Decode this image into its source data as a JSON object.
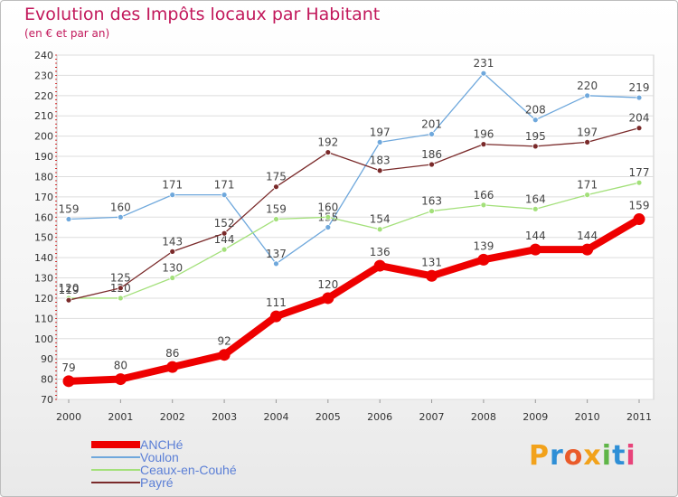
{
  "title": "Evolution des Impôts locaux par Habitant",
  "subtitle": "(en € et par an)",
  "logo": {
    "letters": [
      "P",
      "r",
      "o",
      "x",
      "i",
      "t",
      "i"
    ],
    "colors": [
      "#f2a21b",
      "#2f8fd6",
      "#ea5b2a",
      "#f2a21b",
      "#5fb548",
      "#2f8fd6",
      "#e8437a"
    ]
  },
  "chart_data": {
    "type": "line",
    "title": "Evolution des Impôts locaux par Habitant",
    "subtitle": "(en € et par an)",
    "categories": [
      "2000",
      "2001",
      "2002",
      "2003",
      "2004",
      "2005",
      "2006",
      "2007",
      "2008",
      "2009",
      "2010",
      "2011"
    ],
    "ylim": [
      70,
      240
    ],
    "yticks": [
      70,
      80,
      90,
      100,
      110,
      120,
      130,
      140,
      150,
      160,
      170,
      180,
      190,
      200,
      210,
      220,
      230,
      240
    ],
    "grid": "horizontal",
    "legend_position": "bottom-left",
    "series": [
      {
        "name": "ANCHé",
        "color": "#ee0000",
        "values": [
          79,
          80,
          86,
          92,
          111,
          120,
          136,
          131,
          139,
          144,
          144,
          159
        ]
      },
      {
        "name": "Voulon",
        "color": "#6fa8dc",
        "values": [
          159,
          160,
          171,
          171,
          137,
          155,
          197,
          201,
          231,
          208,
          220,
          219
        ]
      },
      {
        "name": "Ceaux-en-Couhé",
        "color": "#a3e07a",
        "values": [
          120,
          120,
          130,
          144,
          159,
          160,
          154,
          163,
          166,
          164,
          171,
          177
        ]
      },
      {
        "name": "Payré",
        "color": "#7a2a2a",
        "values": [
          119,
          125,
          143,
          152,
          175,
          192,
          183,
          186,
          196,
          195,
          197,
          204
        ]
      }
    ]
  }
}
